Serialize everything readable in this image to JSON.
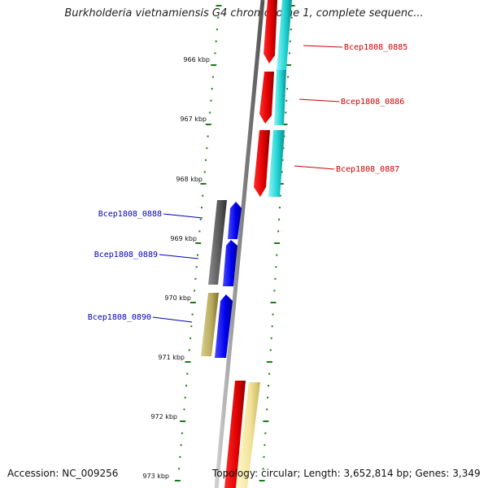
{
  "title": "Burkholderia vietnamiensis G4 chromosome 1, complete sequenc...",
  "accession": "Accession: NC_009256",
  "topology": "Topology: circular; Length: 3,652,814 bp; Genes: 3,349",
  "kbp_labels": [
    "966 kbp",
    "967 kbp",
    "968 kbp",
    "969 kbp",
    "970 kbp",
    "971 kbp",
    "972 kbp",
    "973 kbp"
  ],
  "gene_labels": [
    {
      "id": "Bcep1808_0885",
      "strand": "forward"
    },
    {
      "id": "Bcep1808_0886",
      "strand": "forward"
    },
    {
      "id": "Bcep1808_0887",
      "strand": "forward"
    },
    {
      "id": "Bcep1808_0888",
      "strand": "reverse"
    },
    {
      "id": "Bcep1808_0889",
      "strand": "reverse"
    },
    {
      "id": "Bcep1808_0890",
      "strand": "reverse"
    }
  ],
  "colors": {
    "forward_label": "#cc0000",
    "reverse_label": "#0000bb",
    "tick": "#1a7a1a",
    "backbone": "#888888"
  }
}
